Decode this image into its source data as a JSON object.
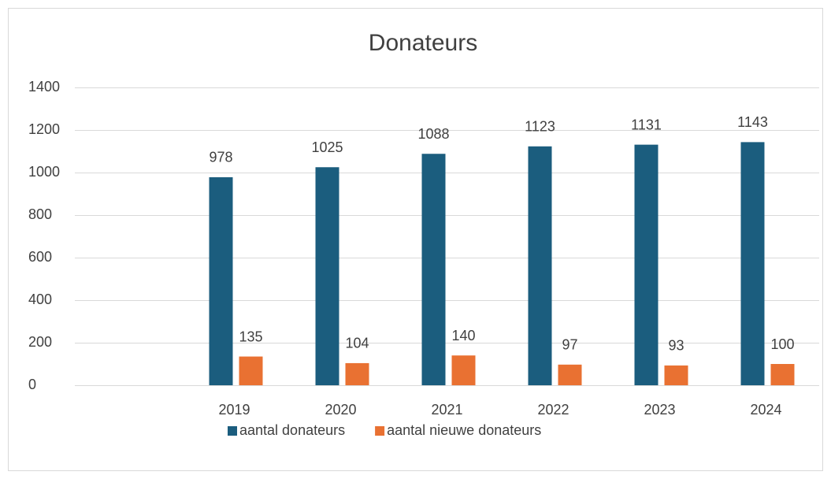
{
  "chart_data": {
    "type": "bar",
    "title": "Donateurs",
    "categories": [
      null,
      "2019",
      "2020",
      "2021",
      "2022",
      "2023",
      "2024"
    ],
    "series": [
      {
        "name": "aantal donateurs",
        "color": "#1b5d7e",
        "values": [
          null,
          978,
          1025,
          1088,
          1123,
          1131,
          1143
        ]
      },
      {
        "name": "aantal nieuwe donateurs",
        "color": "#e97132",
        "values": [
          null,
          135,
          104,
          140,
          97,
          93,
          100
        ]
      }
    ],
    "ylim": [
      0,
      1400
    ],
    "yticks": [
      0,
      200,
      400,
      600,
      800,
      1000,
      1200,
      1400
    ],
    "grid": true,
    "legend": "bottom"
  }
}
